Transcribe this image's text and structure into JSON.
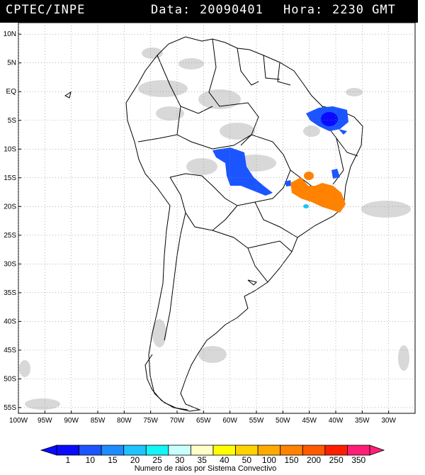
{
  "header": {
    "source": "CPTEC/INPE",
    "date_label": "Data:",
    "date_value": "20090401",
    "hour_label": "Hora:",
    "hour_value": "2230 GMT"
  },
  "map": {
    "lon_range": [
      -100,
      -25
    ],
    "lat_range": [
      -56,
      12
    ],
    "lat_ticks": [
      "10N",
      "5N",
      "EQ",
      "5S",
      "10S",
      "15S",
      "20S",
      "25S",
      "30S",
      "35S",
      "40S",
      "45S",
      "50S",
      "55S"
    ],
    "lon_ticks": [
      "100W",
      "95W",
      "90W",
      "85W",
      "80W",
      "75W",
      "70W",
      "65W",
      "60W",
      "55W",
      "50W",
      "45W",
      "40W",
      "35W",
      "30W"
    ],
    "grid": "dotted"
  },
  "colorbar": {
    "labels": [
      "1",
      "10",
      "15",
      "20",
      "25",
      "30",
      "35",
      "40",
      "50",
      "100",
      "150",
      "200",
      "250",
      "350"
    ],
    "colors": [
      "#0a0aff",
      "#1a55ff",
      "#1e8cff",
      "#1ec3ff",
      "#14f5f5",
      "#c8ffff",
      "#ffffc8",
      "#ffff00",
      "#ffd200",
      "#ffaa00",
      "#ff8200",
      "#ff5a00",
      "#ff1e00",
      "#ff1e78"
    ],
    "caption": "Numero de raios por Sistema Convectivo"
  }
}
